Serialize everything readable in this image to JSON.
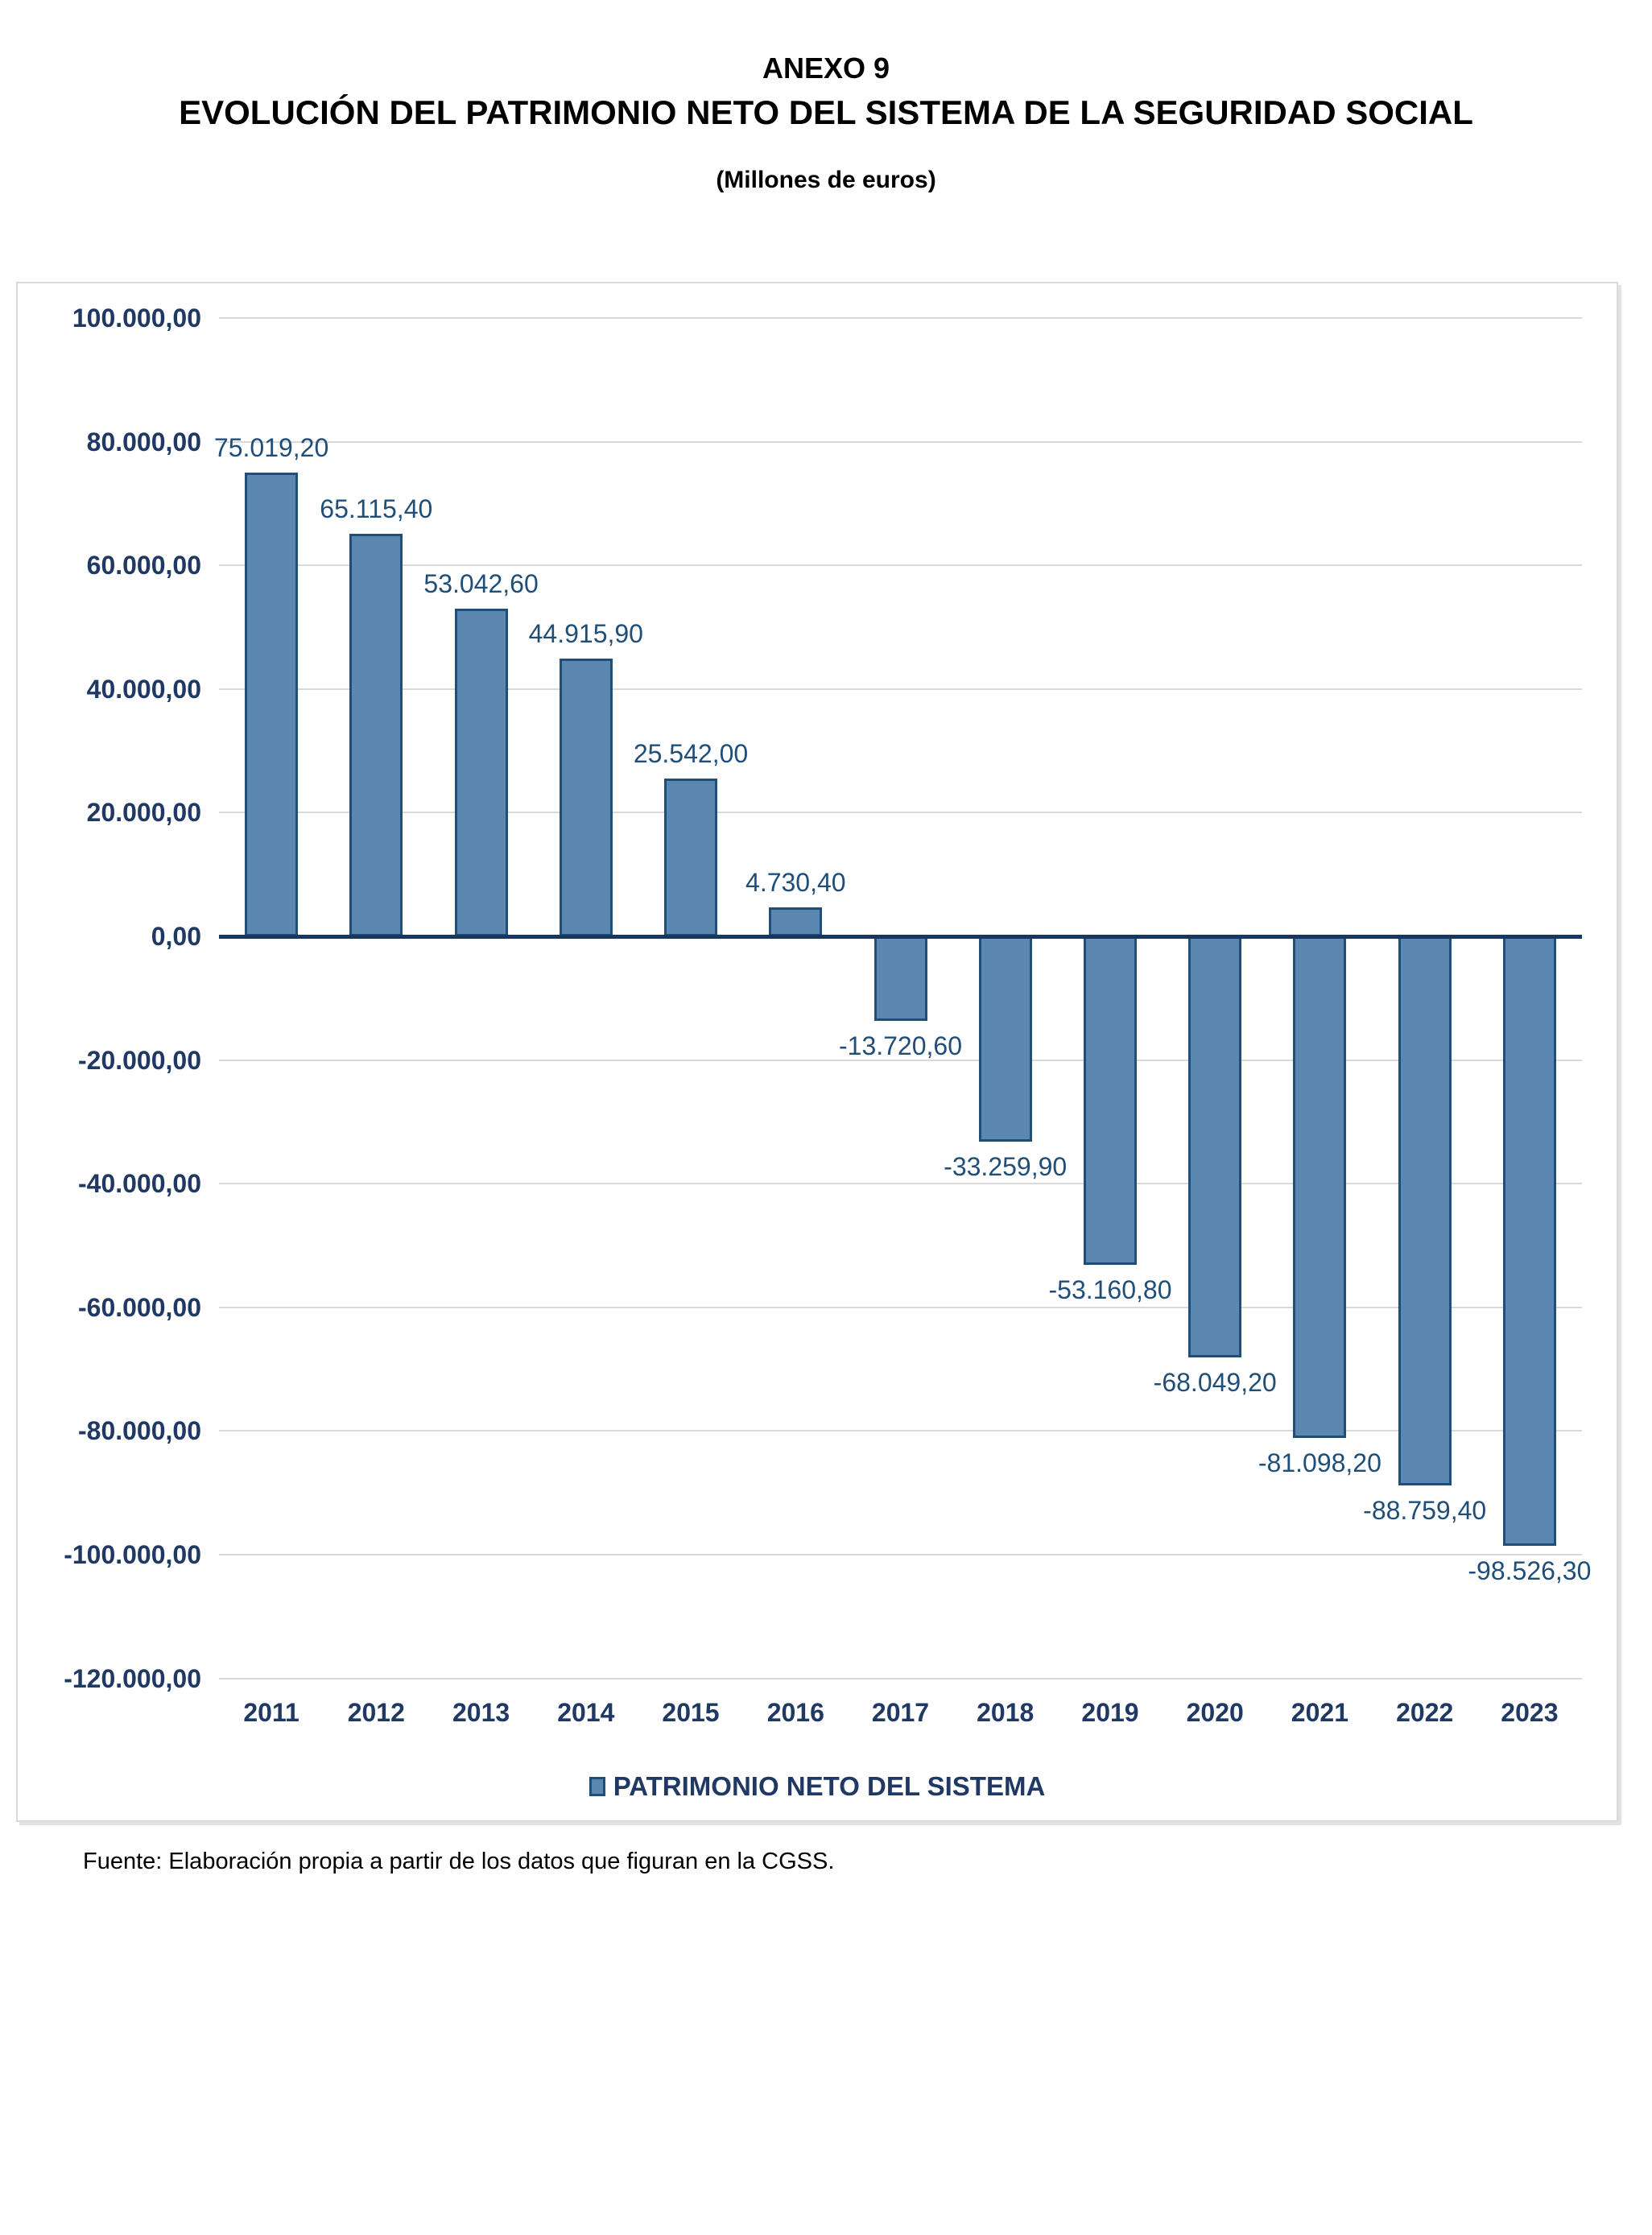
{
  "title": {
    "line1": "ANEXO 9",
    "line2": "EVOLUCIÓN DEL PATRIMONIO NETO DEL SISTEMA DE LA SEGURIDAD SOCIAL",
    "subtitle": "(Millones de euros)"
  },
  "legend": {
    "label": "PATRIMONIO NETO DEL SISTEMA"
  },
  "source_note": "Fuente: Elaboración propia a partir de los datos que figuran en la CGSS.",
  "colors": {
    "bar_fill": "#5C87B1",
    "bar_border": "#1F4E79",
    "data_label": "#1F4E79",
    "axis_text": "#1F3864",
    "gridline": "#D9D9D9",
    "zero_line": "#17375E",
    "frame_border": "#D9D9D9"
  },
  "chart_data": {
    "type": "bar",
    "title": "EVOLUCIÓN DEL PATRIMONIO NETO DEL SISTEMA DE LA SEGURIDAD SOCIAL",
    "units_label": "(Millones de euros)",
    "categories": [
      "2011",
      "2012",
      "2013",
      "2014",
      "2015",
      "2016",
      "2017",
      "2018",
      "2019",
      "2020",
      "2021",
      "2022",
      "2023"
    ],
    "series": [
      {
        "name": "PATRIMONIO NETO DEL SISTEMA",
        "values": [
          75019.2,
          65115.4,
          53042.6,
          44915.9,
          25542.0,
          4730.4,
          -13720.6,
          -33259.9,
          -53160.8,
          -68049.2,
          -81098.2,
          -88759.4,
          -98526.3
        ]
      }
    ],
    "value_labels": [
      "75.019,20",
      "65.115,40",
      "53.042,60",
      "44.915,90",
      "25.542,00",
      "4.730,40",
      "-13.720,60",
      "-33.259,90",
      "-53.160,80",
      "-68.049,20",
      "-81.098,20",
      "-88.759,40",
      "-98.526,30"
    ],
    "ylim": [
      -120000,
      100000
    ],
    "y_step": 20000,
    "y_tick_labels": [
      "100.000,00",
      "80.000,00",
      "60.000,00",
      "40.000,00",
      "20.000,00",
      "0,00",
      "-20.000,00",
      "-40.000,00",
      "-60.000,00",
      "-80.000,00",
      "-100.000,00",
      "-120.000,00"
    ],
    "grid": true,
    "legend_position": "bottom"
  }
}
